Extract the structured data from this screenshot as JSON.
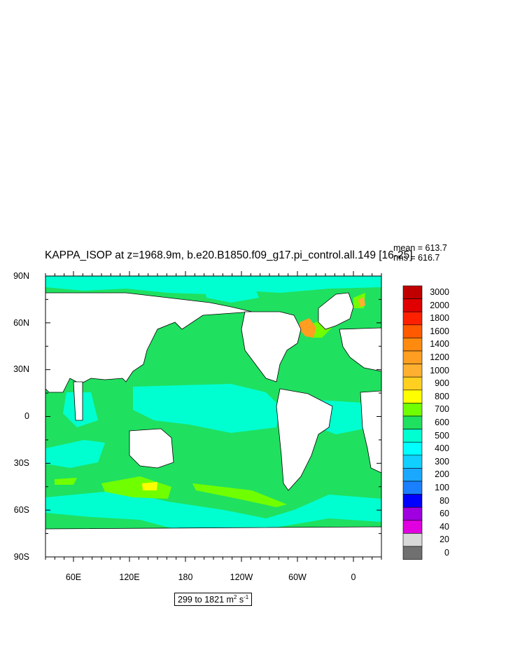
{
  "title": "KAPPA_ISOP at z=1968.9m, b.e20.B1850.f09_g17.pi_control.all.149 [16-25]",
  "stats": {
    "mean": "mean = 613.7",
    "rms": "rms = 616.7"
  },
  "lat_labels": [
    "90N",
    "60N",
    "30N",
    "0",
    "30S",
    "60S",
    "90S"
  ],
  "lon_labels": [
    "60E",
    "120E",
    "180",
    "120W",
    "60W",
    "0"
  ],
  "range_label": {
    "text": "299 to 1821 m",
    "sup1": "2",
    "mid": " s",
    "sup2": "-1"
  },
  "colorbar": {
    "labels": [
      "3000",
      "2000",
      "1800",
      "1600",
      "1400",
      "1200",
      "1000",
      "900",
      "800",
      "700",
      "600",
      "500",
      "400",
      "300",
      "200",
      "100",
      "80",
      "60",
      "40",
      "20",
      "0"
    ],
    "colors": [
      "#c00000",
      "#e00000",
      "#ff2000",
      "#ff5a00",
      "#ff8a10",
      "#ff9e20",
      "#ffb030",
      "#ffd020",
      "#ffff00",
      "#70ff00",
      "#20e060",
      "#00ffd0",
      "#00ffff",
      "#10d0ff",
      "#1aa8ff",
      "#1a80ff",
      "#0000ff",
      "#a000e0",
      "#e000e0",
      "#d8d8d8",
      "#707070"
    ]
  },
  "colors": {
    "ocean_main": "#20e060",
    "ocean_low": "#00ffd0",
    "ocean_high": "#70ff00",
    "land": "#ffffff",
    "coast": "#000000"
  }
}
